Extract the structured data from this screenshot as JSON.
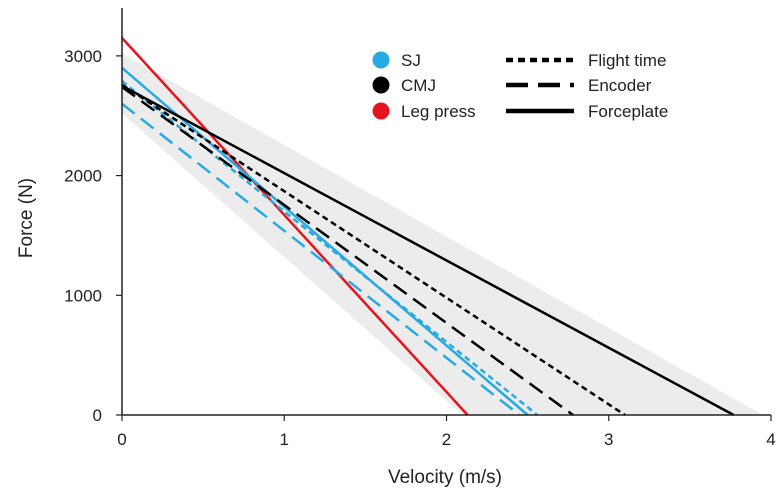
{
  "chart_data": {
    "type": "line",
    "title": "",
    "xlabel": "Velocity (m/s)",
    "ylabel": "Force (N)",
    "xlim": [
      0,
      4
    ],
    "ylim": [
      0,
      3400
    ],
    "x_ticks": [
      "0",
      "1",
      "2",
      "3",
      "4"
    ],
    "y_ticks": [
      "0",
      "1000",
      "2000",
      "3000"
    ],
    "grid": false,
    "legend_position": "top-right",
    "shaded_band": {
      "color": "#ececec",
      "polygon": [
        [
          0,
          3020
        ],
        [
          3.95,
          0
        ],
        [
          2.1,
          0
        ],
        [
          0,
          2520
        ]
      ]
    },
    "legend": {
      "colors": [
        {
          "label": "SJ",
          "color": "#27aae1"
        },
        {
          "label": "CMJ",
          "color": "#000000"
        },
        {
          "label": "Leg press",
          "color": "#e8141d"
        }
      ],
      "methods": [
        {
          "label": "Flight time",
          "style": "short-dash"
        },
        {
          "label": "Encoder",
          "style": "long-dash"
        },
        {
          "label": "Forceplate",
          "style": "solid"
        }
      ]
    },
    "series": [
      {
        "color": "#e8141d",
        "style": "solid",
        "values": [
          [
            0,
            3150
          ],
          [
            2.13,
            0
          ]
        ]
      },
      {
        "color": "#27aae1",
        "style": "solid",
        "values": [
          [
            0,
            2900
          ],
          [
            2.5,
            0
          ]
        ]
      },
      {
        "color": "#27aae1",
        "style": "short-dash",
        "values": [
          [
            0,
            2790
          ],
          [
            2.56,
            0
          ]
        ]
      },
      {
        "color": "#27aae1",
        "style": "long-dash",
        "values": [
          [
            0,
            2600
          ],
          [
            2.45,
            0
          ]
        ]
      },
      {
        "color": "#000000",
        "style": "solid",
        "values": [
          [
            0,
            2750
          ],
          [
            3.77,
            0
          ]
        ]
      },
      {
        "color": "#000000",
        "style": "short-dash",
        "values": [
          [
            0,
            2760
          ],
          [
            3.1,
            0
          ]
        ]
      },
      {
        "color": "#000000",
        "style": "long-dash",
        "values": [
          [
            0,
            2740
          ],
          [
            2.78,
            0
          ]
        ]
      }
    ]
  }
}
